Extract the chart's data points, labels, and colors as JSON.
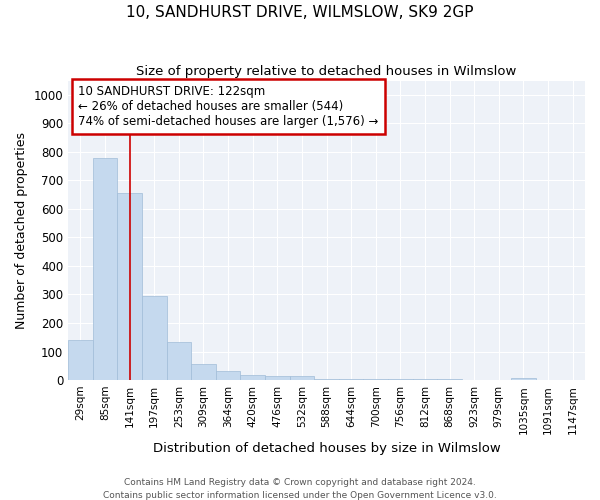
{
  "title": "10, SANDHURST DRIVE, WILMSLOW, SK9 2GP",
  "subtitle": "Size of property relative to detached houses in Wilmslow",
  "xlabel": "Distribution of detached houses by size in Wilmslow",
  "ylabel": "Number of detached properties",
  "bar_color": "#c5d9ee",
  "bar_edge_color": "#a0bcd8",
  "background_color": "#eef2f8",
  "grid_color": "#ffffff",
  "categories": [
    "29sqm",
    "85sqm",
    "141sqm",
    "197sqm",
    "253sqm",
    "309sqm",
    "364sqm",
    "420sqm",
    "476sqm",
    "532sqm",
    "588sqm",
    "644sqm",
    "700sqm",
    "756sqm",
    "812sqm",
    "868sqm",
    "923sqm",
    "979sqm",
    "1035sqm",
    "1091sqm",
    "1147sqm"
  ],
  "values": [
    140,
    778,
    655,
    295,
    135,
    57,
    32,
    18,
    15,
    13,
    5,
    5,
    5,
    5,
    5,
    5,
    0,
    0,
    8,
    0,
    0
  ],
  "ylim": [
    0,
    1050
  ],
  "yticks": [
    0,
    100,
    200,
    300,
    400,
    500,
    600,
    700,
    800,
    900,
    1000
  ],
  "property_line_x": 2.0,
  "annotation_text": "10 SANDHURST DRIVE: 122sqm\n← 26% of detached houses are smaller (544)\n74% of semi-detached houses are larger (1,576) →",
  "annotation_box_color": "#ffffff",
  "annotation_box_edge": "#cc0000",
  "property_line_color": "#cc0000",
  "footer_line1": "Contains HM Land Registry data © Crown copyright and database right 2024.",
  "footer_line2": "Contains public sector information licensed under the Open Government Licence v3.0."
}
